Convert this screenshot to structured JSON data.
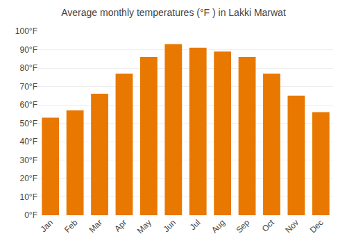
{
  "chart_data": {
    "type": "bar",
    "title": "Average monthly temperatures (°F ) in Lakki Marwat",
    "categories": [
      "Jan",
      "Feb",
      "Mar",
      "Apr",
      "May",
      "Jun",
      "Jul",
      "Aug",
      "Sep",
      "Oct",
      "Nov",
      "Dec"
    ],
    "values": [
      53,
      57,
      66,
      77,
      86,
      93,
      91,
      89,
      86,
      77,
      65,
      56
    ],
    "color": "#E87800",
    "ylim": [
      0,
      100
    ],
    "yticks": [
      {
        "value": 0,
        "label": "0°F"
      },
      {
        "value": 10,
        "label": "10°F"
      },
      {
        "value": 20,
        "label": "20°F"
      },
      {
        "value": 30,
        "label": "30°F"
      },
      {
        "value": 40,
        "label": "40°F"
      },
      {
        "value": 50,
        "label": "50°F"
      },
      {
        "value": 60,
        "label": "60°F"
      },
      {
        "value": 70,
        "label": "70°F"
      },
      {
        "value": 80,
        "label": "80°F"
      },
      {
        "value": 90,
        "label": "90°F"
      },
      {
        "value": 100,
        "label": "100°F"
      }
    ],
    "grid": true
  }
}
